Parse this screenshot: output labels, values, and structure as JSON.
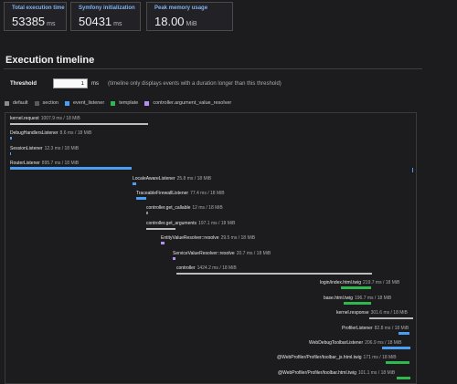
{
  "metrics": {
    "total": {
      "label": "Total execution time",
      "value": "53385",
      "unit": "ms"
    },
    "symfony": {
      "label": "Symfony initialization",
      "value": "50431",
      "unit": "ms"
    },
    "peak": {
      "label": "Peak memory usage",
      "value": "18.00",
      "unit": "MiB"
    }
  },
  "title": "Execution timeline",
  "threshold": {
    "label": "Threshold",
    "value": "1",
    "unit": "ms",
    "hint": "(timeline only displays events with a duration longer than this threshold)"
  },
  "legend": [
    {
      "name": "default",
      "color": "#8c8c8c"
    },
    {
      "name": "section",
      "color": "#5b5b5b"
    },
    {
      "name": "event_listener",
      "color": "#4a9ff5"
    },
    {
      "name": "template",
      "color": "#2eb84e"
    },
    {
      "name": "controller.argument_value_resolver",
      "color": "#b38ff0"
    }
  ],
  "events": [
    {
      "name": "kernel.request",
      "meta": "1007.9 ms / 18 MiB",
      "category": "section"
    },
    {
      "name": "DebugHandlersListener",
      "meta": "8.6 ms / 18 MiB",
      "category": "event_listener"
    },
    {
      "name": "SessionListener",
      "meta": "12.3 ms / 18 MiB",
      "category": "event_listener"
    },
    {
      "name": "RouterListener",
      "meta": "895.7 ms / 18 MiB",
      "category": "event_listener"
    },
    {
      "name": "LocaleAwareListener",
      "meta": "25.8 ms / 18 MiB",
      "category": "event_listener"
    },
    {
      "name": "TraceableFirewallListener",
      "meta": "77.4 ms / 18 MiB",
      "category": "event_listener"
    },
    {
      "name": "controller.get_callable",
      "meta": "12 ms / 18 MiB",
      "category": "default"
    },
    {
      "name": "controller.get_arguments",
      "meta": "197.1 ms / 18 MiB",
      "category": "section"
    },
    {
      "name": "EntityValueResolver::resolve",
      "meta": "29.5 ms / 18 MiB",
      "category": "controller.argument_value_resolver"
    },
    {
      "name": "ServiceValueResolver::resolve",
      "meta": "20.7 ms / 18 MiB",
      "category": "controller.argument_value_resolver"
    },
    {
      "name": "controller",
      "meta": "1424.2 ms / 18 MiB",
      "category": "section"
    },
    {
      "name": "login/index.html.twig",
      "meta": "219.7 ms / 18 MiB",
      "category": "template"
    },
    {
      "name": "base.html.twig",
      "meta": "196.7 ms / 18 MiB",
      "category": "template"
    },
    {
      "name": "kernel.response",
      "meta": "301.6 ms / 18 MiB",
      "category": "section"
    },
    {
      "name": "ProfilerListener",
      "meta": "82.8 ms / 18 MiB",
      "category": "event_listener"
    },
    {
      "name": "WebDebugToolbarListener",
      "meta": "206.9 ms / 18 MiB",
      "category": "event_listener"
    },
    {
      "name": "@WebProfiler/Profiler/toolbar_js.html.twig",
      "meta": "171 ms / 18 MiB",
      "category": "template"
    },
    {
      "name": "@WebProfiler/Profiler/toolbar.html.twig",
      "meta": "101.1 ms / 18 MiB",
      "category": "template"
    }
  ]
}
